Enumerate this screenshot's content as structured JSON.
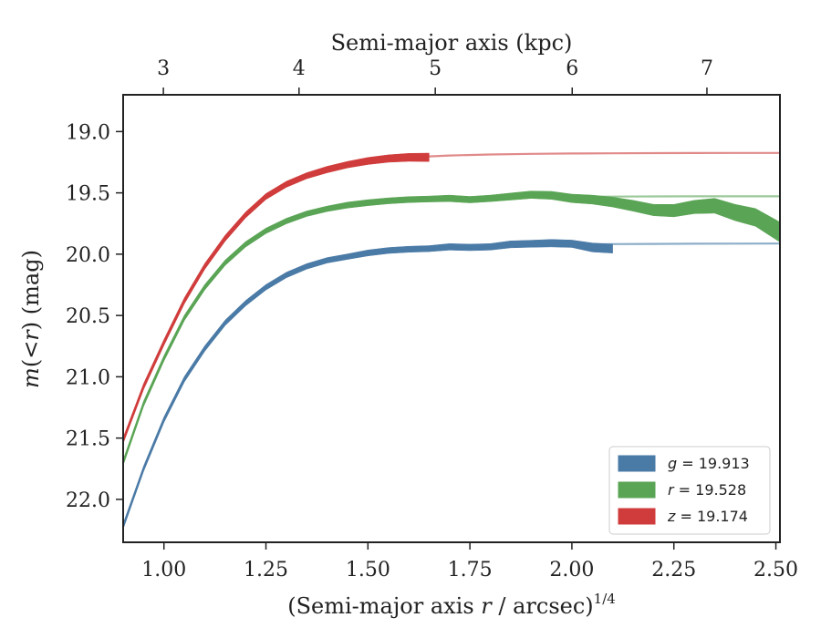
{
  "chart_data": {
    "type": "line",
    "xlabel_prefix": "(Semi-major axis ",
    "xlabel_var": "r",
    "xlabel_mid": " / arcsec)",
    "xlabel_sup": "1/4",
    "ylabel_pre": "m",
    "ylabel_mid": "(<",
    "ylabel_var": "r",
    "ylabel_post": ") (mag)",
    "top_xlabel": "Semi-major axis (kpc)",
    "xlim": [
      0.9,
      2.51
    ],
    "ylim": [
      22.35,
      18.7
    ],
    "x_ticks": [
      1.0,
      1.25,
      1.5,
      1.75,
      2.0,
      2.25,
      2.5
    ],
    "x_tick_labels": [
      "1.00",
      "1.25",
      "1.50",
      "1.75",
      "2.00",
      "2.25",
      "2.50"
    ],
    "y_ticks": [
      19.0,
      19.5,
      20.0,
      20.5,
      21.0,
      21.5,
      22.0
    ],
    "y_tick_labels": [
      "19.0",
      "19.5",
      "20.0",
      "20.5",
      "21.0",
      "21.5",
      "22.0"
    ],
    "top_ticks_kpc": [
      3,
      4,
      5,
      6,
      7
    ],
    "top_tick_labels": [
      "3",
      "4",
      "5",
      "6",
      "7"
    ],
    "top_tick_positions_x": [
      0.9986,
      1.3311,
      1.6651,
      2.0007,
      2.331
    ],
    "legend_placement": "lower-right",
    "series": [
      {
        "name": "g = 19.913",
        "legend_var": "g",
        "legend_value": "= 19.913",
        "color": "#4a7aa6",
        "model_color": "#8daec8",
        "model_total": 19.913,
        "model": {
          "x": [
            0.9,
            0.95,
            1.0,
            1.05,
            1.1,
            1.15,
            1.2,
            1.25,
            1.3,
            1.35,
            1.4,
            1.45,
            1.5,
            1.55,
            1.6,
            1.7,
            1.8,
            1.9,
            2.0,
            2.1,
            2.2,
            2.3,
            2.4,
            2.51
          ],
          "y": [
            22.22,
            21.75,
            21.35,
            21.02,
            20.77,
            20.56,
            20.4,
            20.27,
            20.17,
            20.1,
            20.05,
            20.02,
            19.99,
            19.97,
            19.96,
            19.94,
            19.93,
            19.925,
            19.92,
            19.918,
            19.916,
            19.915,
            19.914,
            19.913
          ]
        },
        "data": {
          "x": [
            0.9,
            0.95,
            1.0,
            1.05,
            1.1,
            1.15,
            1.2,
            1.25,
            1.3,
            1.35,
            1.4,
            1.45,
            1.5,
            1.55,
            1.6,
            1.65,
            1.7,
            1.75,
            1.8,
            1.85,
            1.9,
            1.95,
            2.0,
            2.05,
            2.1
          ],
          "y": [
            22.22,
            21.75,
            21.35,
            21.02,
            20.77,
            20.56,
            20.4,
            20.27,
            20.17,
            20.1,
            20.05,
            20.02,
            19.99,
            19.97,
            19.96,
            19.955,
            19.94,
            19.945,
            19.94,
            19.92,
            19.915,
            19.91,
            19.915,
            19.945,
            19.955
          ],
          "err": [
            0.006,
            0.006,
            0.006,
            0.006,
            0.006,
            0.006,
            0.006,
            0.006,
            0.006,
            0.006,
            0.006,
            0.006,
            0.008,
            0.008,
            0.008,
            0.008,
            0.01,
            0.01,
            0.01,
            0.012,
            0.012,
            0.014,
            0.014,
            0.02,
            0.02
          ]
        }
      },
      {
        "name": "r = 19.528",
        "legend_var": "r",
        "legend_value": "= 19.528",
        "color": "#5aa455",
        "model_color": "#9cc99a",
        "model_total": 19.528,
        "model": {
          "x": [
            0.9,
            0.95,
            1.0,
            1.05,
            1.1,
            1.15,
            1.2,
            1.25,
            1.3,
            1.35,
            1.4,
            1.45,
            1.5,
            1.55,
            1.6,
            1.7,
            1.8,
            1.9,
            2.0,
            2.1,
            2.2,
            2.3,
            2.4,
            2.51
          ],
          "y": [
            21.7,
            21.22,
            20.85,
            20.52,
            20.27,
            20.07,
            19.92,
            19.81,
            19.73,
            19.67,
            19.63,
            19.6,
            19.58,
            19.565,
            19.555,
            19.545,
            19.538,
            19.534,
            19.531,
            19.53,
            19.529,
            19.528,
            19.528,
            19.528
          ]
        },
        "data": {
          "x": [
            0.9,
            0.95,
            1.0,
            1.05,
            1.1,
            1.15,
            1.2,
            1.25,
            1.3,
            1.35,
            1.4,
            1.45,
            1.5,
            1.55,
            1.6,
            1.65,
            1.7,
            1.75,
            1.8,
            1.85,
            1.9,
            1.95,
            2.0,
            2.05,
            2.1,
            2.15,
            2.2,
            2.25,
            2.3,
            2.35,
            2.4,
            2.45,
            2.51
          ],
          "y": [
            21.7,
            21.22,
            20.85,
            20.52,
            20.27,
            20.07,
            19.92,
            19.81,
            19.73,
            19.67,
            19.63,
            19.6,
            19.58,
            19.565,
            19.555,
            19.55,
            19.545,
            19.555,
            19.545,
            19.53,
            19.515,
            19.52,
            19.545,
            19.555,
            19.575,
            19.605,
            19.64,
            19.645,
            19.615,
            19.605,
            19.66,
            19.7,
            19.82
          ],
          "err": [
            0.006,
            0.006,
            0.006,
            0.006,
            0.006,
            0.006,
            0.006,
            0.006,
            0.006,
            0.006,
            0.006,
            0.008,
            0.008,
            0.008,
            0.008,
            0.008,
            0.01,
            0.01,
            0.01,
            0.012,
            0.014,
            0.016,
            0.018,
            0.02,
            0.024,
            0.028,
            0.03,
            0.034,
            0.038,
            0.044,
            0.05,
            0.056,
            0.065
          ]
        }
      },
      {
        "name": "z = 19.174",
        "legend_var": "z",
        "legend_value": "= 19.174",
        "color": "#d03c3c",
        "model_color": "#e18a8a",
        "model_total": 19.174,
        "model": {
          "x": [
            0.9,
            0.95,
            1.0,
            1.05,
            1.1,
            1.15,
            1.2,
            1.25,
            1.3,
            1.35,
            1.4,
            1.45,
            1.5,
            1.55,
            1.6,
            1.7,
            1.8,
            1.9,
            2.0,
            2.1,
            2.2,
            2.3,
            2.4,
            2.51
          ],
          "y": [
            21.52,
            21.08,
            20.72,
            20.38,
            20.1,
            19.87,
            19.68,
            19.53,
            19.43,
            19.36,
            19.31,
            19.27,
            19.24,
            19.22,
            19.21,
            19.195,
            19.187,
            19.182,
            19.179,
            19.177,
            19.176,
            19.175,
            19.174,
            19.174
          ]
        },
        "data": {
          "x": [
            0.9,
            0.95,
            1.0,
            1.05,
            1.1,
            1.15,
            1.2,
            1.25,
            1.3,
            1.35,
            1.4,
            1.45,
            1.5,
            1.55,
            1.6,
            1.65
          ],
          "y": [
            21.52,
            21.08,
            20.72,
            20.38,
            20.1,
            19.87,
            19.68,
            19.53,
            19.43,
            19.36,
            19.31,
            19.27,
            19.24,
            19.22,
            19.21,
            19.21
          ],
          "err": [
            0.008,
            0.008,
            0.008,
            0.008,
            0.008,
            0.008,
            0.008,
            0.008,
            0.008,
            0.008,
            0.01,
            0.01,
            0.012,
            0.014,
            0.016,
            0.018
          ]
        }
      }
    ]
  }
}
